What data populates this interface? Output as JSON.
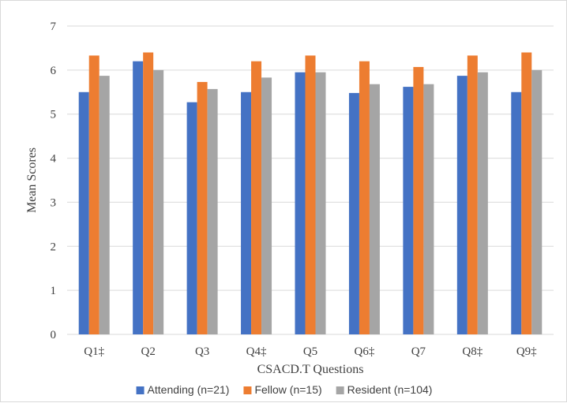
{
  "chart_data": {
    "type": "bar",
    "title": "",
    "xlabel": "CSACD.T Questions",
    "ylabel": "Mean Scores",
    "ylim": [
      0,
      7
    ],
    "yticks": [
      0,
      1,
      2,
      3,
      4,
      5,
      6,
      7
    ],
    "grid": true,
    "legend_position": "bottom",
    "categories": [
      "Q1‡",
      "Q2",
      "Q3",
      "Q4‡",
      "Q5",
      "Q6‡",
      "Q7",
      "Q8‡",
      "Q9‡"
    ],
    "series": [
      {
        "name": "Attending (n=21)",
        "color": "#4472c4",
        "values": [
          5.5,
          6.2,
          5.27,
          5.5,
          5.95,
          5.48,
          5.62,
          5.87,
          5.5
        ]
      },
      {
        "name": "Fellow (n=15)",
        "color": "#ed7d31",
        "values": [
          6.33,
          6.4,
          5.73,
          6.2,
          6.33,
          6.2,
          6.07,
          6.33,
          6.4
        ]
      },
      {
        "name": "Resident (n=104)",
        "color": "#a5a5a5",
        "values": [
          5.87,
          6.0,
          5.57,
          5.83,
          5.95,
          5.68,
          5.68,
          5.95,
          6.0
        ]
      }
    ]
  }
}
